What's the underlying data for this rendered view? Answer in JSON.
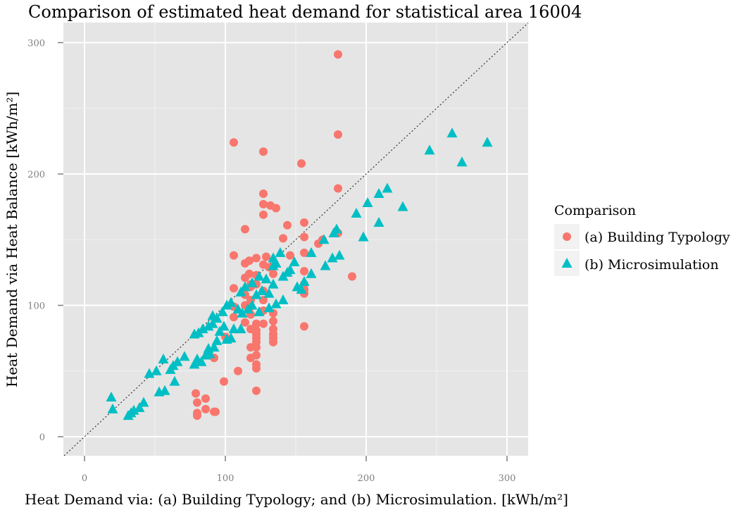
{
  "chart_data": {
    "type": "scatter",
    "title": "Comparison of estimated heat demand for statistical area 16004",
    "xlabel": "Heat Demand via: (a) Building Typology; and (b) Microsimulation. [kWh/m²]",
    "ylabel": "Heat Demand via Heat Balance [kWh/m²]",
    "xlim": [
      -15,
      315
    ],
    "ylim": [
      -15,
      310
    ],
    "x_ticks": [
      0,
      100,
      200,
      300
    ],
    "y_ticks": [
      0,
      100,
      200,
      300
    ],
    "x_tick_labels": [
      "0",
      "100",
      "200",
      "300"
    ],
    "y_tick_labels": [
      "0",
      "100",
      "200",
      "300"
    ],
    "grid": true,
    "reference_line": "y = x (dotted)",
    "legend": {
      "title": "Comparison",
      "position": "right",
      "entries": [
        "(a) Building Typology",
        "(b) Microsimulation"
      ]
    },
    "series": [
      {
        "name": "(a) Building Typology",
        "marker": "circle",
        "color": "#F8766D",
        "points": [
          [
            180,
            291
          ],
          [
            180,
            230
          ],
          [
            106,
            224
          ],
          [
            127,
            217
          ],
          [
            154,
            208
          ],
          [
            180,
            189
          ],
          [
            127,
            185
          ],
          [
            127,
            177
          ],
          [
            132,
            176
          ],
          [
            136,
            174
          ],
          [
            127,
            169
          ],
          [
            156,
            163
          ],
          [
            144,
            161
          ],
          [
            114,
            158
          ],
          [
            180,
            155
          ],
          [
            156,
            152
          ],
          [
            141,
            151
          ],
          [
            169,
            150
          ],
          [
            166,
            147
          ],
          [
            156,
            140
          ],
          [
            106,
            138
          ],
          [
            122,
            136
          ],
          [
            129,
            137
          ],
          [
            146,
            138
          ],
          [
            117,
            134
          ],
          [
            114,
            132
          ],
          [
            127,
            131
          ],
          [
            131,
            129
          ],
          [
            117,
            124
          ],
          [
            122,
            123
          ],
          [
            134,
            124
          ],
          [
            156,
            126
          ],
          [
            114,
            121
          ],
          [
            118,
            116
          ],
          [
            156,
            116
          ],
          [
            190,
            122
          ],
          [
            106,
            113
          ],
          [
            118,
            114
          ],
          [
            122,
            116
          ],
          [
            156,
            112
          ],
          [
            127,
            111
          ],
          [
            156,
            109
          ],
          [
            114,
            108
          ],
          [
            118,
            104
          ],
          [
            127,
            104
          ],
          [
            106,
            99
          ],
          [
            114,
            100
          ],
          [
            118,
            99
          ],
          [
            127,
            96
          ],
          [
            134,
            94
          ],
          [
            118,
            93
          ],
          [
            106,
            91
          ],
          [
            134,
            88
          ],
          [
            114,
            87
          ],
          [
            122,
            86
          ],
          [
            127,
            86
          ],
          [
            156,
            84
          ],
          [
            118,
            82
          ],
          [
            122,
            81
          ],
          [
            134,
            82
          ],
          [
            122,
            78
          ],
          [
            134,
            78
          ],
          [
            100,
            76
          ],
          [
            122,
            75
          ],
          [
            134,
            75
          ],
          [
            122,
            72
          ],
          [
            134,
            72
          ],
          [
            118,
            68
          ],
          [
            122,
            68
          ],
          [
            92,
            60
          ],
          [
            118,
            60
          ],
          [
            122,
            62
          ],
          [
            122,
            55
          ],
          [
            122,
            52
          ],
          [
            109,
            50
          ],
          [
            99,
            42
          ],
          [
            122,
            35
          ],
          [
            79,
            33
          ],
          [
            86,
            29
          ],
          [
            80,
            26
          ],
          [
            86,
            21
          ],
          [
            92,
            19
          ],
          [
            80,
            18
          ],
          [
            93,
            19
          ],
          [
            80,
            16
          ]
        ]
      },
      {
        "name": "(b) Microsimulation",
        "marker": "triangle",
        "color": "#00BFC4",
        "points": [
          [
            261,
            231
          ],
          [
            286,
            224
          ],
          [
            245,
            218
          ],
          [
            268,
            209
          ],
          [
            215,
            189
          ],
          [
            209,
            185
          ],
          [
            201,
            178
          ],
          [
            226,
            175
          ],
          [
            193,
            170
          ],
          [
            209,
            163
          ],
          [
            198,
            152
          ],
          [
            179,
            158
          ],
          [
            177,
            155
          ],
          [
            170,
            150
          ],
          [
            181,
            138
          ],
          [
            176,
            136
          ],
          [
            171,
            130
          ],
          [
            161,
            140
          ],
          [
            161,
            124
          ],
          [
            149,
            133
          ],
          [
            146,
            127
          ],
          [
            144,
            125
          ],
          [
            141,
            122
          ],
          [
            139,
            140
          ],
          [
            134,
            136
          ],
          [
            136,
            132
          ],
          [
            134,
            130
          ],
          [
            129,
            120
          ],
          [
            124,
            122
          ],
          [
            119,
            117
          ],
          [
            126,
            111
          ],
          [
            122,
            108
          ],
          [
            114,
            114
          ],
          [
            111,
            110
          ],
          [
            134,
            116
          ],
          [
            156,
            118
          ],
          [
            151,
            114
          ],
          [
            154,
            112
          ],
          [
            131,
            109
          ],
          [
            141,
            104
          ],
          [
            136,
            101
          ],
          [
            131,
            98
          ],
          [
            124,
            95
          ],
          [
            119,
            100
          ],
          [
            116,
            97
          ],
          [
            112,
            94
          ],
          [
            109,
            97
          ],
          [
            104,
            102
          ],
          [
            101,
            100
          ],
          [
            98,
            95
          ],
          [
            94,
            90
          ],
          [
            91,
            86
          ],
          [
            88,
            84
          ],
          [
            84,
            82
          ],
          [
            81,
            79
          ],
          [
            78,
            78
          ],
          [
            91,
            92
          ],
          [
            99,
            84
          ],
          [
            96,
            80
          ],
          [
            106,
            82
          ],
          [
            111,
            82
          ],
          [
            101,
            74
          ],
          [
            104,
            75
          ],
          [
            94,
            73
          ],
          [
            88,
            67
          ],
          [
            92,
            68
          ],
          [
            86,
            62
          ],
          [
            89,
            63
          ],
          [
            80,
            59
          ],
          [
            83,
            57
          ],
          [
            78,
            55
          ],
          [
            71,
            61
          ],
          [
            66,
            57
          ],
          [
            63,
            54
          ],
          [
            61,
            51
          ],
          [
            56,
            59
          ],
          [
            51,
            50
          ],
          [
            46,
            48
          ],
          [
            64,
            42
          ],
          [
            57,
            35
          ],
          [
            53,
            34
          ],
          [
            42,
            26
          ],
          [
            39,
            22
          ],
          [
            35,
            20
          ],
          [
            33,
            18
          ],
          [
            31,
            16
          ],
          [
            19,
            30
          ],
          [
            20,
            21
          ]
        ]
      }
    ]
  }
}
